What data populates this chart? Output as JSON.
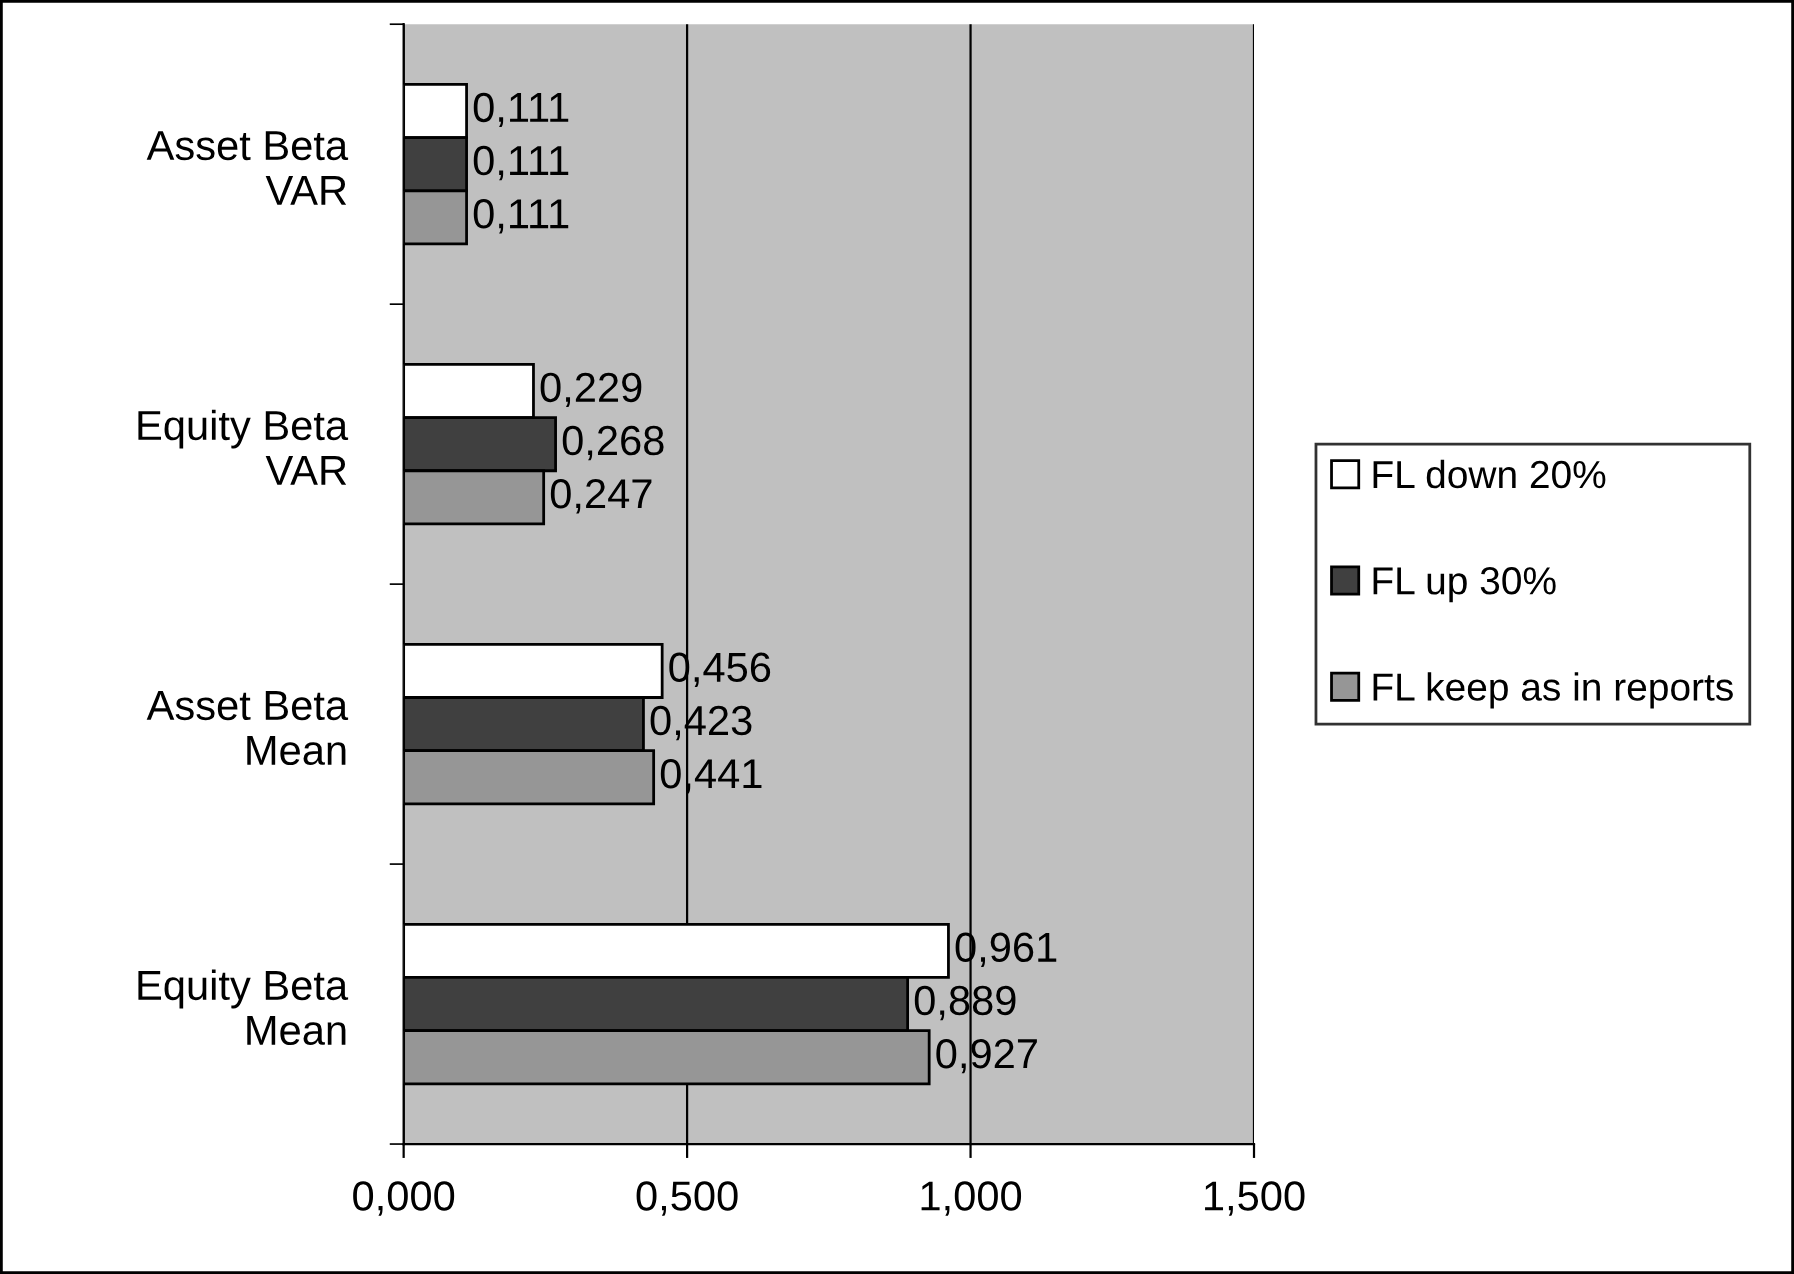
{
  "chart_data": {
    "type": "bar",
    "orientation": "horizontal",
    "categories": [
      "Asset Beta\nVAR",
      "Equity Beta\nVAR",
      "Asset Beta\nMean",
      "Equity Beta\nMean"
    ],
    "series": [
      {
        "name": "FL down 20%",
        "color": "#ffffff",
        "values": [
          0.111,
          0.229,
          0.456,
          0.961
        ],
        "value_labels": [
          "0,111",
          "0,229",
          "0,456",
          "0,961"
        ]
      },
      {
        "name": "FL up 30%",
        "color": "#404040",
        "values": [
          0.111,
          0.268,
          0.423,
          0.889
        ],
        "value_labels": [
          "0,111",
          "0,268",
          "0,423",
          "0,889"
        ]
      },
      {
        "name": "FL keep as in reports",
        "color": "#969696",
        "values": [
          0.111,
          0.247,
          0.441,
          0.927
        ],
        "value_labels": [
          "0,111",
          "0,247",
          "0,441",
          "0,927"
        ]
      }
    ],
    "xlim": [
      0,
      1.5
    ],
    "xticks": [
      {
        "value": 0,
        "label": "0,000"
      },
      {
        "value": 0.5,
        "label": "0,500"
      },
      {
        "value": 1,
        "label": "1,000"
      },
      {
        "value": 1.5,
        "label": "1,500"
      }
    ],
    "grid": "x",
    "legend": "right"
  }
}
